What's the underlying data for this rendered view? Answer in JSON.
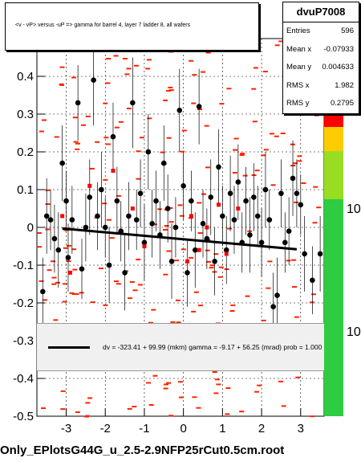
{
  "title": "<v - vP>       versus -uP =>  gamma for barrel 4, layer 7 ladder 8, all wafers",
  "stats": {
    "name": "dvuP7008",
    "rows": [
      {
        "label": "Entries",
        "value": "596"
      },
      {
        "label": "Mean x",
        "value": "-0.07933"
      },
      {
        "label": "Mean y",
        "value": "0.004633"
      },
      {
        "label": "RMS x",
        "value": "1.982"
      },
      {
        "label": "RMS y",
        "value": "0.2795"
      }
    ]
  },
  "fit_text": "dv = -323.41 + 99.99 (mkm) gamma =   -9.17 + 56.25 (mrad) prob = 1.000",
  "filename": "Only_EPlotsG44G_u_2.5-2.9NFP25rCut0.5cm.root",
  "palette_labels": [
    "10",
    "10"
  ],
  "colors": {
    "profile": "#000000",
    "red_points": "#ff0000",
    "hist": "#ff2200",
    "palette_top": "#ff0000",
    "palette_low": "#2ecc40"
  },
  "chart_data": {
    "type": "scatter",
    "xlim": [
      -3.75,
      3.6
    ],
    "ylim": [
      -0.5,
      0.5
    ],
    "x_ticks": [
      -3,
      -2,
      -1,
      0,
      1,
      2,
      3
    ],
    "y_ticks": [
      -0.5,
      -0.4,
      -0.3,
      -0.2,
      -0.1,
      0,
      0.1,
      0.2,
      0.3,
      0.4
    ],
    "grid": true,
    "fit_line": {
      "x": [
        -3.1,
        2.9
      ],
      "y": [
        -0.003,
        -0.058
      ]
    },
    "profile": [
      {
        "x": -3.6,
        "y": -0.17,
        "err": 0.09
      },
      {
        "x": -3.5,
        "y": 0.03,
        "err": 0.1
      },
      {
        "x": -3.4,
        "y": 0.02,
        "err": 0.08
      },
      {
        "x": -3.3,
        "y": -0.03,
        "err": 0.09
      },
      {
        "x": -3.2,
        "y": -0.06,
        "err": 0.1
      },
      {
        "x": -3.1,
        "y": 0.17,
        "err": 0.1
      },
      {
        "x": -3.0,
        "y": 0.07,
        "err": 0.08
      },
      {
        "x": -2.95,
        "y": -0.08,
        "err": 0.09
      },
      {
        "x": -2.85,
        "y": 0.02,
        "err": 0.09
      },
      {
        "x": -2.7,
        "y": 0.33,
        "err": 0.1
      },
      {
        "x": -2.6,
        "y": -0.11,
        "err": 0.08
      },
      {
        "x": -2.5,
        "y": -0.0,
        "err": 0.09
      },
      {
        "x": -2.4,
        "y": 0.08,
        "err": 0.1
      },
      {
        "x": -2.3,
        "y": 0.39,
        "err": 0.12
      },
      {
        "x": -2.2,
        "y": 0.03,
        "err": 0.09
      },
      {
        "x": -2.1,
        "y": 0.1,
        "err": 0.1
      },
      {
        "x": -2.0,
        "y": 0.0,
        "err": 0.08
      },
      {
        "x": -1.9,
        "y": -0.1,
        "err": 0.1
      },
      {
        "x": -1.8,
        "y": 0.24,
        "err": 0.09
      },
      {
        "x": -1.7,
        "y": 0.07,
        "err": 0.09
      },
      {
        "x": -1.6,
        "y": -0.01,
        "err": 0.08
      },
      {
        "x": -1.5,
        "y": -0.12,
        "err": 0.1
      },
      {
        "x": -1.4,
        "y": 0.03,
        "err": 0.09
      },
      {
        "x": -1.3,
        "y": 0.33,
        "err": 0.12
      },
      {
        "x": -1.2,
        "y": 0.02,
        "err": 0.08
      },
      {
        "x": -1.1,
        "y": 0.09,
        "err": 0.09
      },
      {
        "x": -1.0,
        "y": -0.04,
        "err": 0.1
      },
      {
        "x": -0.9,
        "y": 0.2,
        "err": 0.1
      },
      {
        "x": -0.8,
        "y": 0.01,
        "err": 0.09
      },
      {
        "x": -0.7,
        "y": 0.07,
        "err": 0.08
      },
      {
        "x": -0.6,
        "y": -0.02,
        "err": 0.09
      },
      {
        "x": -0.5,
        "y": 0.17,
        "err": 0.1
      },
      {
        "x": -0.4,
        "y": 0.05,
        "err": 0.09
      },
      {
        "x": -0.3,
        "y": -0.09,
        "err": 0.1
      },
      {
        "x": -0.2,
        "y": 0.0,
        "err": 0.08
      },
      {
        "x": -0.1,
        "y": 0.31,
        "err": 0.11
      },
      {
        "x": 0.0,
        "y": 0.11,
        "err": 0.09
      },
      {
        "x": 0.1,
        "y": -0.12,
        "err": 0.09
      },
      {
        "x": 0.2,
        "y": 0.07,
        "err": 0.08
      },
      {
        "x": 0.3,
        "y": -0.06,
        "err": 0.1
      },
      {
        "x": 0.4,
        "y": 0.32,
        "err": 0.1
      },
      {
        "x": 0.5,
        "y": 0.01,
        "err": 0.09
      },
      {
        "x": 0.6,
        "y": -0.03,
        "err": 0.08
      },
      {
        "x": 0.7,
        "y": 0.08,
        "err": 0.1
      },
      {
        "x": 0.8,
        "y": -0.09,
        "err": 0.09
      },
      {
        "x": 0.9,
        "y": 0.16,
        "err": 0.1
      },
      {
        "x": 1.0,
        "y": 0.03,
        "err": 0.08
      },
      {
        "x": 1.1,
        "y": -0.06,
        "err": 0.09
      },
      {
        "x": 1.2,
        "y": 0.09,
        "err": 0.1
      },
      {
        "x": 1.3,
        "y": 0.02,
        "err": 0.09
      },
      {
        "x": 1.4,
        "y": 0.12,
        "err": 0.1
      },
      {
        "x": 1.5,
        "y": -0.04,
        "err": 0.08
      },
      {
        "x": 1.6,
        "y": 0.07,
        "err": 0.09
      },
      {
        "x": 1.7,
        "y": -0.02,
        "err": 0.1
      },
      {
        "x": 1.8,
        "y": 0.08,
        "err": 0.09
      },
      {
        "x": 1.9,
        "y": 0.03,
        "err": 0.08
      },
      {
        "x": 2.0,
        "y": -0.04,
        "err": 0.09
      },
      {
        "x": 2.1,
        "y": 0.1,
        "err": 0.1
      },
      {
        "x": 2.2,
        "y": 0.02,
        "err": 0.08
      },
      {
        "x": 2.3,
        "y": -0.21,
        "err": 0.09
      },
      {
        "x": 2.4,
        "y": -0.18,
        "err": 0.1
      },
      {
        "x": 2.5,
        "y": 0.09,
        "err": 0.09
      },
      {
        "x": 2.6,
        "y": -0.04,
        "err": 0.08
      },
      {
        "x": 2.7,
        "y": -0.01,
        "err": 0.09
      },
      {
        "x": 2.8,
        "y": 0.13,
        "err": 0.1
      },
      {
        "x": 2.9,
        "y": 0.09,
        "err": 0.09
      },
      {
        "x": 3.0,
        "y": 0.06,
        "err": 0.08
      },
      {
        "x": 3.1,
        "y": -0.07,
        "err": 0.1
      },
      {
        "x": 3.3,
        "y": -0.14,
        "err": 0.09
      },
      {
        "x": 3.5,
        "y": -0.07,
        "err": 0.1
      }
    ],
    "red_points": [
      {
        "x": -3.1,
        "y": 0.03
      },
      {
        "x": -2.9,
        "y": -0.12
      },
      {
        "x": -2.4,
        "y": 0.11
      },
      {
        "x": -1.8,
        "y": 0.15
      },
      {
        "x": -1.3,
        "y": 0.05
      },
      {
        "x": -1.0,
        "y": -0.05
      },
      {
        "x": 0.2,
        "y": 0.03
      },
      {
        "x": 0.4,
        "y": -0.06
      },
      {
        "x": 0.6,
        "y": 0.0
      },
      {
        "x": 0.9,
        "y": 0.06
      },
      {
        "x": 1.1,
        "y": -0.07
      },
      {
        "x": 1.4,
        "y": 0.05
      },
      {
        "x": 0.1,
        "y": -0.09
      },
      {
        "x": 3.4,
        "y": 0.3
      }
    ]
  }
}
